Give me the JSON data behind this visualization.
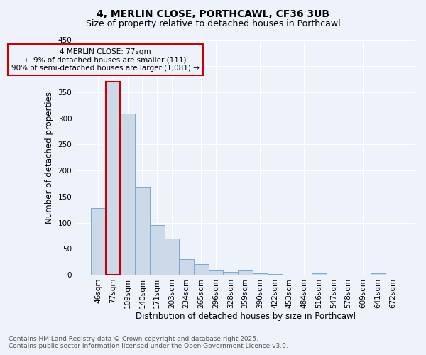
{
  "title1": "4, MERLIN CLOSE, PORTHCAWL, CF36 3UB",
  "title2": "Size of property relative to detached houses in Porthcawl",
  "xlabel": "Distribution of detached houses by size in Porthcawl",
  "ylabel": "Number of detached properties",
  "categories": [
    "46sqm",
    "77sqm",
    "109sqm",
    "140sqm",
    "171sqm",
    "203sqm",
    "234sqm",
    "265sqm",
    "296sqm",
    "328sqm",
    "359sqm",
    "390sqm",
    "422sqm",
    "453sqm",
    "484sqm",
    "516sqm",
    "547sqm",
    "578sqm",
    "609sqm",
    "641sqm",
    "672sqm"
  ],
  "values": [
    128,
    370,
    309,
    168,
    95,
    69,
    30,
    20,
    10,
    5,
    9,
    3,
    1,
    0,
    0,
    2,
    0,
    0,
    0,
    2,
    0
  ],
  "bar_color": "#ccd9e8",
  "bar_edge_color": "#7aaad0",
  "highlight_bar_index": 1,
  "highlight_left_edge_color": "#cc0000",
  "annotation_text": "4 MERLIN CLOSE: 77sqm\n← 9% of detached houses are smaller (111)\n90% of semi-detached houses are larger (1,081) →",
  "annotation_box_edge_color": "#cc0000",
  "ylim": [
    0,
    450
  ],
  "yticks": [
    0,
    50,
    100,
    150,
    200,
    250,
    300,
    350,
    400,
    450
  ],
  "background_color": "#eef2fb",
  "grid_color": "#ffffff",
  "footer_line1": "Contains HM Land Registry data © Crown copyright and database right 2025.",
  "footer_line2": "Contains public sector information licensed under the Open Government Licence v3.0.",
  "title_fontsize": 10,
  "subtitle_fontsize": 9,
  "axis_label_fontsize": 8.5,
  "tick_fontsize": 7.5,
  "footer_fontsize": 6.5,
  "annotation_fontsize": 7.5
}
